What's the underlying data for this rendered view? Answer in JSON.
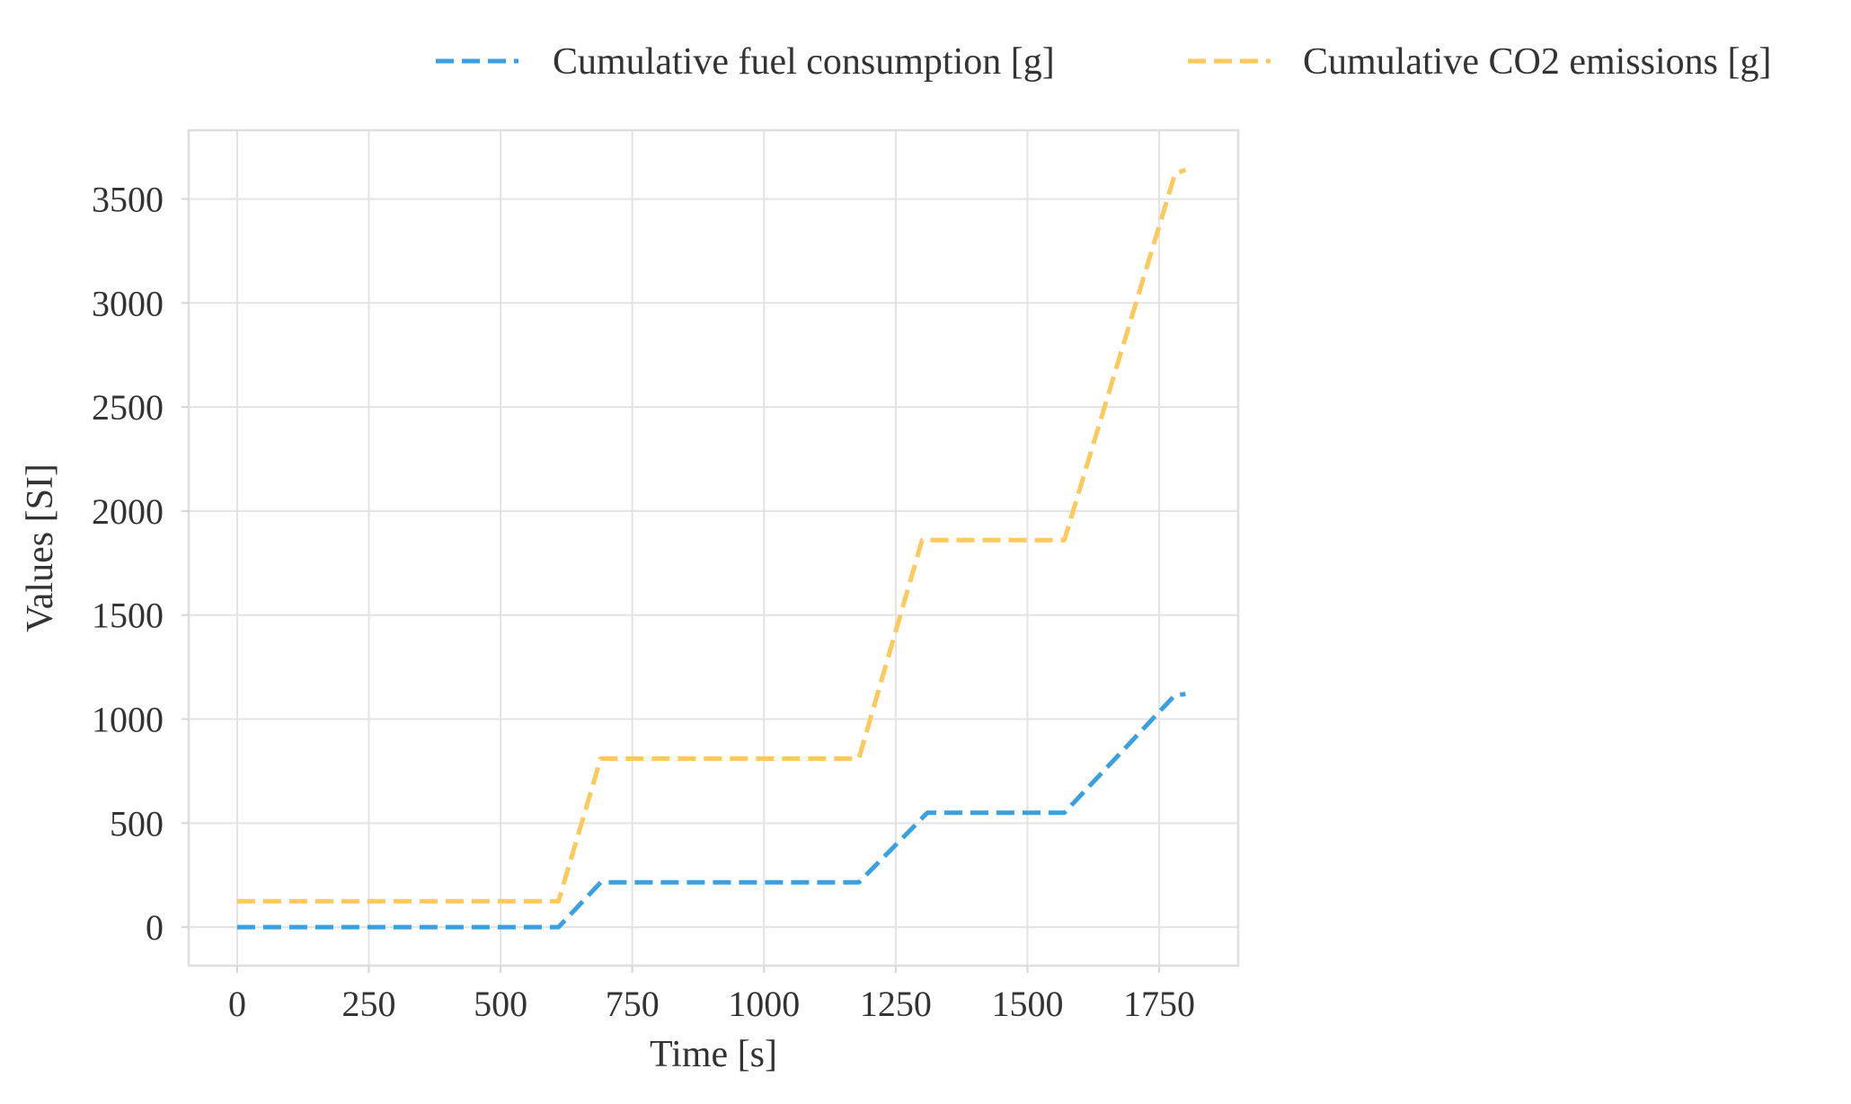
{
  "chart_data": {
    "type": "line",
    "title": "",
    "xlabel": "Time [s]",
    "ylabel": "Values [SI]",
    "xlim": [
      -92,
      1900
    ],
    "ylim": [
      -185,
      3830
    ],
    "xticks": [
      0,
      250,
      500,
      750,
      1000,
      1250,
      1500,
      1750
    ],
    "xtick_labels": [
      "0",
      "250",
      "500",
      "750",
      "1000",
      "1250",
      "1500",
      "1750"
    ],
    "yticks": [
      0,
      500,
      1000,
      1500,
      2000,
      2500,
      3000,
      3500
    ],
    "ytick_labels": [
      "0",
      "500",
      "1000",
      "1500",
      "2000",
      "2500",
      "3000",
      "3500"
    ],
    "grid": true,
    "legend_position": "top",
    "series": [
      {
        "name": "Cumulative fuel consumption [g]",
        "color": "#3aa0e0",
        "style": "dashed",
        "x": [
          0,
          610,
          690,
          1180,
          1310,
          1570,
          1780,
          1800
        ],
        "y": [
          0,
          0,
          215,
          215,
          550,
          550,
          1115,
          1120
        ]
      },
      {
        "name": "Cumulative CO2 emissions [g]",
        "color": "#fcc95a",
        "style": "dashed",
        "x": [
          0,
          610,
          690,
          1180,
          1300,
          1570,
          1780,
          1800
        ],
        "y": [
          125,
          125,
          810,
          810,
          1860,
          1860,
          3620,
          3640
        ]
      }
    ]
  }
}
